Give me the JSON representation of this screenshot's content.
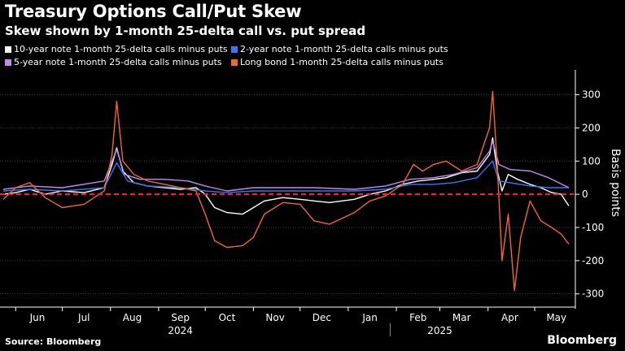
{
  "title": "Treasury Options Call/Put Skew",
  "subtitle": "Skew shown by 1-month 25-delta call vs. put spread",
  "source": "Source: Bloomberg",
  "brand": "Bloomberg",
  "colors": {
    "ten_year": "#ffffff",
    "two_year": "#3478f6",
    "five_year": "#c08af2",
    "long_bond": "#f2682a",
    "zero_line": "#e8233a",
    "axis": "#ffffff",
    "grid": "#3a3a3a"
  },
  "chart_data": {
    "type": "line",
    "title": "Treasury Options Call/Put Skew",
    "ylabel": "Basis points",
    "xlabel": "",
    "ylim": [
      -340,
      370
    ],
    "yticks": [
      300,
      200,
      100,
      0,
      -100,
      -200,
      -300
    ],
    "reference_line": {
      "y": 0,
      "style": "dashed"
    },
    "x_axis": {
      "start": "2024-05-24",
      "end": "2025-05-23",
      "months": [
        {
          "label": "Jun",
          "date": "2024-06-15"
        },
        {
          "label": "Jul",
          "date": "2024-07-15"
        },
        {
          "label": "Aug",
          "date": "2024-08-15"
        },
        {
          "label": "Sep",
          "date": "2024-09-15"
        },
        {
          "label": "Oct",
          "date": "2024-10-15"
        },
        {
          "label": "Nov",
          "date": "2024-11-15"
        },
        {
          "label": "Dec",
          "date": "2024-12-15"
        },
        {
          "label": "Jan",
          "date": "2025-01-15"
        },
        {
          "label": "Feb",
          "date": "2025-02-15"
        },
        {
          "label": "Mar",
          "date": "2025-03-15"
        },
        {
          "label": "Apr",
          "date": "2025-04-15"
        },
        {
          "label": "May",
          "date": "2025-05-15"
        }
      ],
      "years": [
        {
          "label": "2024",
          "date": "2024-09-15"
        },
        {
          "label": "2025",
          "date": "2025-03-01"
        }
      ],
      "year_divider": "2025-01-28"
    },
    "series": [
      {
        "name": "10-year note 1-month 25-delta calls minus puts",
        "color_key": "ten_year",
        "points": [
          [
            "2024-05-24",
            0
          ],
          [
            "2024-06-01",
            5
          ],
          [
            "2024-06-10",
            15
          ],
          [
            "2024-06-20",
            0
          ],
          [
            "2024-07-01",
            10
          ],
          [
            "2024-07-15",
            5
          ],
          [
            "2024-07-28",
            20
          ],
          [
            "2024-08-02",
            90
          ],
          [
            "2024-08-05",
            140
          ],
          [
            "2024-08-09",
            70
          ],
          [
            "2024-08-16",
            35
          ],
          [
            "2024-08-25",
            25
          ],
          [
            "2024-09-05",
            20
          ],
          [
            "2024-09-15",
            15
          ],
          [
            "2024-09-25",
            20
          ],
          [
            "2024-10-01",
            0
          ],
          [
            "2024-10-07",
            -40
          ],
          [
            "2024-10-15",
            -55
          ],
          [
            "2024-10-25",
            -60
          ],
          [
            "2024-11-01",
            -40
          ],
          [
            "2024-11-08",
            -20
          ],
          [
            "2024-11-20",
            -10
          ],
          [
            "2024-12-01",
            -15
          ],
          [
            "2024-12-10",
            -20
          ],
          [
            "2024-12-20",
            -25
          ],
          [
            "2025-01-05",
            -15
          ],
          [
            "2025-01-15",
            0
          ],
          [
            "2025-01-25",
            10
          ],
          [
            "2025-02-05",
            30
          ],
          [
            "2025-02-15",
            40
          ],
          [
            "2025-02-25",
            45
          ],
          [
            "2025-03-05",
            50
          ],
          [
            "2025-03-15",
            65
          ],
          [
            "2025-03-25",
            70
          ],
          [
            "2025-04-02",
            120
          ],
          [
            "2025-04-04",
            170
          ],
          [
            "2025-04-07",
            70
          ],
          [
            "2025-04-10",
            10
          ],
          [
            "2025-04-14",
            60
          ],
          [
            "2025-04-20",
            45
          ],
          [
            "2025-04-28",
            30
          ],
          [
            "2025-05-05",
            20
          ],
          [
            "2025-05-12",
            5
          ],
          [
            "2025-05-18",
            0
          ],
          [
            "2025-05-23",
            -35
          ]
        ]
      },
      {
        "name": "2-year note 1-month 25-delta calls minus puts",
        "color_key": "two_year",
        "points": [
          [
            "2024-05-24",
            10
          ],
          [
            "2024-06-10",
            15
          ],
          [
            "2024-07-01",
            10
          ],
          [
            "2024-07-28",
            20
          ],
          [
            "2024-08-05",
            95
          ],
          [
            "2024-08-12",
            40
          ],
          [
            "2024-08-25",
            25
          ],
          [
            "2024-09-15",
            20
          ],
          [
            "2024-10-01",
            10
          ],
          [
            "2024-10-15",
            5
          ],
          [
            "2024-11-01",
            10
          ],
          [
            "2024-11-20",
            10
          ],
          [
            "2024-12-10",
            10
          ],
          [
            "2025-01-05",
            10
          ],
          [
            "2025-01-25",
            15
          ],
          [
            "2025-02-10",
            30
          ],
          [
            "2025-02-25",
            30
          ],
          [
            "2025-03-10",
            35
          ],
          [
            "2025-03-25",
            50
          ],
          [
            "2025-04-04",
            100
          ],
          [
            "2025-04-08",
            40
          ],
          [
            "2025-04-15",
            35
          ],
          [
            "2025-04-28",
            25
          ],
          [
            "2025-05-10",
            20
          ],
          [
            "2025-05-23",
            20
          ]
        ]
      },
      {
        "name": "5-year note 1-month 25-delta calls minus puts",
        "color_key": "five_year",
        "points": [
          [
            "2024-05-24",
            15
          ],
          [
            "2024-06-10",
            25
          ],
          [
            "2024-07-01",
            20
          ],
          [
            "2024-07-28",
            40
          ],
          [
            "2024-08-02",
            100
          ],
          [
            "2024-08-05",
            135
          ],
          [
            "2024-08-10",
            60
          ],
          [
            "2024-08-20",
            45
          ],
          [
            "2024-09-05",
            45
          ],
          [
            "2024-09-20",
            40
          ],
          [
            "2024-10-01",
            25
          ],
          [
            "2024-10-15",
            10
          ],
          [
            "2024-11-01",
            20
          ],
          [
            "2024-11-20",
            20
          ],
          [
            "2024-12-10",
            20
          ],
          [
            "2025-01-05",
            15
          ],
          [
            "2025-01-25",
            25
          ],
          [
            "2025-02-10",
            45
          ],
          [
            "2025-02-25",
            50
          ],
          [
            "2025-03-10",
            60
          ],
          [
            "2025-03-25",
            80
          ],
          [
            "2025-04-02",
            130
          ],
          [
            "2025-04-04",
            160
          ],
          [
            "2025-04-08",
            90
          ],
          [
            "2025-04-15",
            75
          ],
          [
            "2025-04-28",
            70
          ],
          [
            "2025-05-10",
            50
          ],
          [
            "2025-05-23",
            20
          ]
        ]
      },
      {
        "name": "Long bond 1-month 25-delta calls minus puts",
        "color_key": "long_bond",
        "points": [
          [
            "2024-05-24",
            -15
          ],
          [
            "2024-06-01",
            20
          ],
          [
            "2024-06-10",
            35
          ],
          [
            "2024-06-20",
            -10
          ],
          [
            "2024-07-01",
            -40
          ],
          [
            "2024-07-15",
            -30
          ],
          [
            "2024-07-28",
            10
          ],
          [
            "2024-08-02",
            120
          ],
          [
            "2024-08-05",
            280
          ],
          [
            "2024-08-09",
            100
          ],
          [
            "2024-08-16",
            60
          ],
          [
            "2024-08-25",
            40
          ],
          [
            "2024-09-05",
            30
          ],
          [
            "2024-09-15",
            20
          ],
          [
            "2024-09-25",
            10
          ],
          [
            "2024-10-01",
            -60
          ],
          [
            "2024-10-07",
            -140
          ],
          [
            "2024-10-15",
            -160
          ],
          [
            "2024-10-25",
            -155
          ],
          [
            "2024-11-01",
            -130
          ],
          [
            "2024-11-08",
            -60
          ],
          [
            "2024-11-20",
            -25
          ],
          [
            "2024-12-01",
            -30
          ],
          [
            "2024-12-10",
            -80
          ],
          [
            "2024-12-20",
            -90
          ],
          [
            "2025-01-05",
            -55
          ],
          [
            "2025-01-15",
            -20
          ],
          [
            "2025-01-25",
            -5
          ],
          [
            "2025-02-05",
            30
          ],
          [
            "2025-02-12",
            90
          ],
          [
            "2025-02-18",
            70
          ],
          [
            "2025-02-25",
            90
          ],
          [
            "2025-03-05",
            100
          ],
          [
            "2025-03-15",
            70
          ],
          [
            "2025-03-25",
            90
          ],
          [
            "2025-04-02",
            200
          ],
          [
            "2025-04-04",
            310
          ],
          [
            "2025-04-07",
            80
          ],
          [
            "2025-04-10",
            -200
          ],
          [
            "2025-04-14",
            -60
          ],
          [
            "2025-04-18",
            -290
          ],
          [
            "2025-04-22",
            -130
          ],
          [
            "2025-04-28",
            -20
          ],
          [
            "2025-05-05",
            -80
          ],
          [
            "2025-05-12",
            -100
          ],
          [
            "2025-05-18",
            -120
          ],
          [
            "2025-05-23",
            -150
          ]
        ]
      }
    ]
  }
}
